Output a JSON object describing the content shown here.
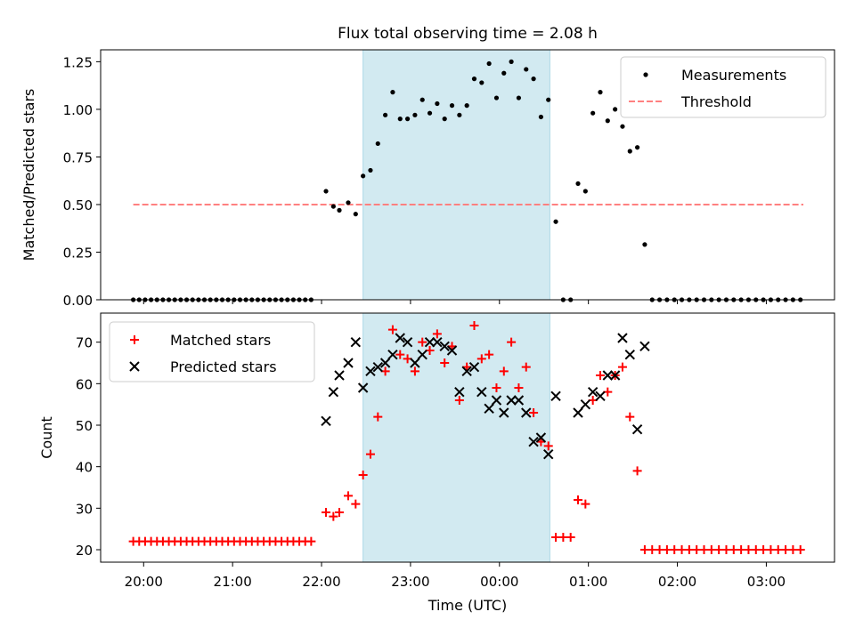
{
  "title": "Flux total observing time = 2.08 h",
  "colors": {
    "shade": "#add8e6",
    "threshold": "#ff8080",
    "matched": "#ff0000",
    "predicted": "#000000",
    "measurements": "#000000"
  },
  "chart_data": [
    {
      "type": "scatter",
      "title": "Flux total observing time = 2.08 h",
      "ylabel": "Matched/Predicted stars",
      "xlabel": "",
      "xlim": [
        "19:31",
        "03:46"
      ],
      "ylim": [
        0,
        1.3125
      ],
      "x_ticks": [
        "20:00",
        "21:00",
        "22:00",
        "23:00",
        "00:00",
        "01:00",
        "02:00",
        "03:00"
      ],
      "y_ticks": [
        "0.00",
        "0.25",
        "0.50",
        "0.75",
        "1.00",
        "1.25"
      ],
      "shaded_interval": [
        "22:28",
        "00:34"
      ],
      "legend": {
        "position": "top-right",
        "entries": [
          "Measurements",
          "Threshold"
        ]
      },
      "threshold": {
        "name": "Threshold",
        "value": 0.5,
        "x_range": [
          "19:53",
          "03:25"
        ]
      },
      "series": [
        {
          "name": "Measurements",
          "x": [
            "19:53",
            "19:57",
            "20:01",
            "20:05",
            "20:09",
            "20:13",
            "20:17",
            "20:21",
            "20:25",
            "20:29",
            "20:33",
            "20:37",
            "20:41",
            "20:45",
            "20:49",
            "20:53",
            "20:57",
            "21:01",
            "21:05",
            "21:09",
            "21:13",
            "21:17",
            "21:21",
            "21:25",
            "21:29",
            "21:33",
            "21:37",
            "21:41",
            "21:45",
            "21:49",
            "21:53",
            "22:03",
            "22:08",
            "22:12",
            "22:18",
            "22:23",
            "22:28",
            "22:33",
            "22:38",
            "22:43",
            "22:48",
            "22:53",
            "22:58",
            "23:03",
            "23:08",
            "23:13",
            "23:18",
            "23:23",
            "23:28",
            "23:33",
            "23:38",
            "23:43",
            "23:48",
            "23:53",
            "23:58",
            "00:03",
            "00:08",
            "00:13",
            "00:18",
            "00:23",
            "00:28",
            "00:33",
            "00:38",
            "00:43",
            "00:48",
            "00:53",
            "00:58",
            "01:03",
            "01:08",
            "01:13",
            "01:18",
            "01:23",
            "01:28",
            "01:33",
            "01:38",
            "01:43",
            "01:48",
            "01:53",
            "01:58",
            "02:03",
            "02:08",
            "02:13",
            "02:18",
            "02:23",
            "02:28",
            "02:33",
            "02:38",
            "02:43",
            "02:48",
            "02:53",
            "02:58",
            "03:03",
            "03:08",
            "03:13",
            "03:18",
            "03:23"
          ],
          "y": [
            0,
            0,
            0,
            0,
            0,
            0,
            0,
            0,
            0,
            0,
            0,
            0,
            0,
            0,
            0,
            0,
            0,
            0,
            0,
            0,
            0,
            0,
            0,
            0,
            0,
            0,
            0,
            0,
            0,
            0,
            0,
            0.57,
            0.49,
            0.47,
            0.51,
            0.45,
            0.65,
            0.68,
            0.82,
            0.97,
            1.09,
            0.95,
            0.95,
            0.97,
            1.05,
            0.98,
            1.03,
            0.95,
            1.02,
            0.97,
            1.02,
            1.16,
            1.14,
            1.24,
            1.06,
            1.19,
            1.25,
            1.06,
            1.21,
            1.16,
            0.96,
            1.05,
            0.41,
            0,
            0,
            0.61,
            0.57,
            0.98,
            1.09,
            0.94,
            1.0,
            0.91,
            0.78,
            0.8,
            0.29,
            0,
            0,
            0,
            0,
            0,
            0,
            0,
            0,
            0,
            0,
            0,
            0,
            0,
            0,
            0,
            0,
            0,
            0,
            0,
            0,
            0
          ]
        }
      ]
    },
    {
      "type": "scatter",
      "ylabel": "Count",
      "xlabel": "Time (UTC)",
      "xlim": [
        "19:31",
        "03:46"
      ],
      "ylim": [
        17,
        77
      ],
      "x_ticks": [
        "20:00",
        "21:00",
        "22:00",
        "23:00",
        "00:00",
        "01:00",
        "02:00",
        "03:00"
      ],
      "y_ticks": [
        "20",
        "30",
        "40",
        "50",
        "60",
        "70"
      ],
      "shaded_interval": [
        "22:28",
        "00:34"
      ],
      "legend": {
        "position": "top-left",
        "entries": [
          "Matched stars",
          "Predicted stars"
        ]
      },
      "series": [
        {
          "name": "Matched stars",
          "marker": "plus",
          "x": [
            "19:53",
            "19:57",
            "20:01",
            "20:05",
            "20:09",
            "20:13",
            "20:17",
            "20:21",
            "20:25",
            "20:29",
            "20:33",
            "20:37",
            "20:41",
            "20:45",
            "20:49",
            "20:53",
            "20:57",
            "21:01",
            "21:05",
            "21:09",
            "21:13",
            "21:17",
            "21:21",
            "21:25",
            "21:29",
            "21:33",
            "21:37",
            "21:41",
            "21:45",
            "21:49",
            "21:53",
            "22:03",
            "22:08",
            "22:12",
            "22:18",
            "22:23",
            "22:28",
            "22:33",
            "22:38",
            "22:43",
            "22:48",
            "22:53",
            "22:58",
            "23:03",
            "23:08",
            "23:13",
            "23:18",
            "23:23",
            "23:28",
            "23:33",
            "23:38",
            "23:43",
            "23:48",
            "23:53",
            "23:58",
            "00:03",
            "00:08",
            "00:13",
            "00:18",
            "00:23",
            "00:28",
            "00:33",
            "00:38",
            "00:43",
            "00:48",
            "00:53",
            "00:58",
            "01:03",
            "01:08",
            "01:13",
            "01:18",
            "01:23",
            "01:28",
            "01:33",
            "01:38",
            "01:43",
            "01:48",
            "01:53",
            "01:58",
            "02:03",
            "02:08",
            "02:13",
            "02:18",
            "02:23",
            "02:28",
            "02:33",
            "02:38",
            "02:43",
            "02:48",
            "02:53",
            "02:58",
            "03:03",
            "03:08",
            "03:13",
            "03:18",
            "03:23"
          ],
          "y": [
            22,
            22,
            22,
            22,
            22,
            22,
            22,
            22,
            22,
            22,
            22,
            22,
            22,
            22,
            22,
            22,
            22,
            22,
            22,
            22,
            22,
            22,
            22,
            22,
            22,
            22,
            22,
            22,
            22,
            22,
            22,
            29,
            28,
            29,
            33,
            31,
            38,
            43,
            52,
            63,
            73,
            67,
            66,
            63,
            70,
            68,
            72,
            65,
            69,
            56,
            64,
            74,
            66,
            67,
            59,
            63,
            70,
            59,
            64,
            53,
            46,
            45,
            23,
            23,
            23,
            32,
            31,
            56,
            62,
            58,
            62,
            64,
            52,
            39,
            20,
            20,
            20,
            20,
            20,
            20,
            20,
            20,
            20,
            20,
            20,
            20,
            20,
            20,
            20,
            20,
            20,
            20,
            20,
            20,
            20,
            20
          ]
        },
        {
          "name": "Predicted stars",
          "marker": "x",
          "x": [
            "22:03",
            "22:08",
            "22:12",
            "22:18",
            "22:23",
            "22:28",
            "22:33",
            "22:38",
            "22:43",
            "22:48",
            "22:53",
            "22:58",
            "23:03",
            "23:08",
            "23:13",
            "23:18",
            "23:23",
            "23:28",
            "23:33",
            "23:38",
            "23:43",
            "23:48",
            "23:53",
            "23:58",
            "00:03",
            "00:08",
            "00:13",
            "00:18",
            "00:23",
            "00:28",
            "00:33",
            "00:38",
            "00:53",
            "00:58",
            "01:03",
            "01:08",
            "01:13",
            "01:18",
            "01:23",
            "01:28",
            "01:33",
            "01:38"
          ],
          "y": [
            51,
            58,
            62,
            65,
            70,
            59,
            63,
            64,
            65,
            67,
            71,
            70,
            65,
            67,
            70,
            70,
            69,
            68,
            58,
            63,
            64,
            58,
            54,
            56,
            53,
            56,
            56,
            53,
            46,
            47,
            43,
            57,
            53,
            55,
            58,
            57,
            62,
            62,
            71,
            67,
            49,
            69
          ]
        }
      ]
    }
  ]
}
